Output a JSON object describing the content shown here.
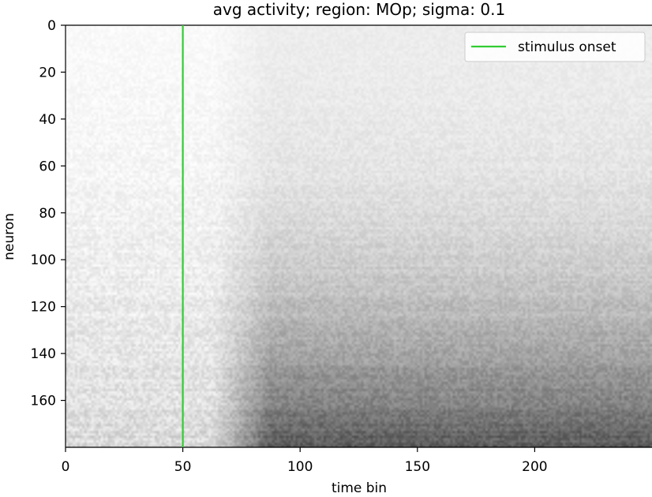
{
  "chart_data": {
    "type": "heatmap",
    "title": "avg activity; region: MOp; sigma: 0.1",
    "xlabel": "time bin",
    "ylabel": "neuron",
    "x_range": [
      0,
      250
    ],
    "y_range": [
      0,
      180
    ],
    "y_inverted": true,
    "x_ticks": [
      0,
      50,
      100,
      150,
      200
    ],
    "y_ticks": [
      0,
      20,
      40,
      60,
      80,
      100,
      120,
      140,
      160
    ],
    "colormap": "Greys",
    "background_color": "#ffffff",
    "high_value_color": "#000000",
    "vertical_lines": [
      {
        "x": 50,
        "label": "stimulus onset",
        "color": "#33cc33"
      }
    ],
    "legend": {
      "location": "top-right",
      "entries": [
        "stimulus onset"
      ]
    },
    "intensity_notes": "Activity is faint before time bin 50, increases after ~65, strongest for neurons ~140-180 and fading for lower-index neurons."
  }
}
